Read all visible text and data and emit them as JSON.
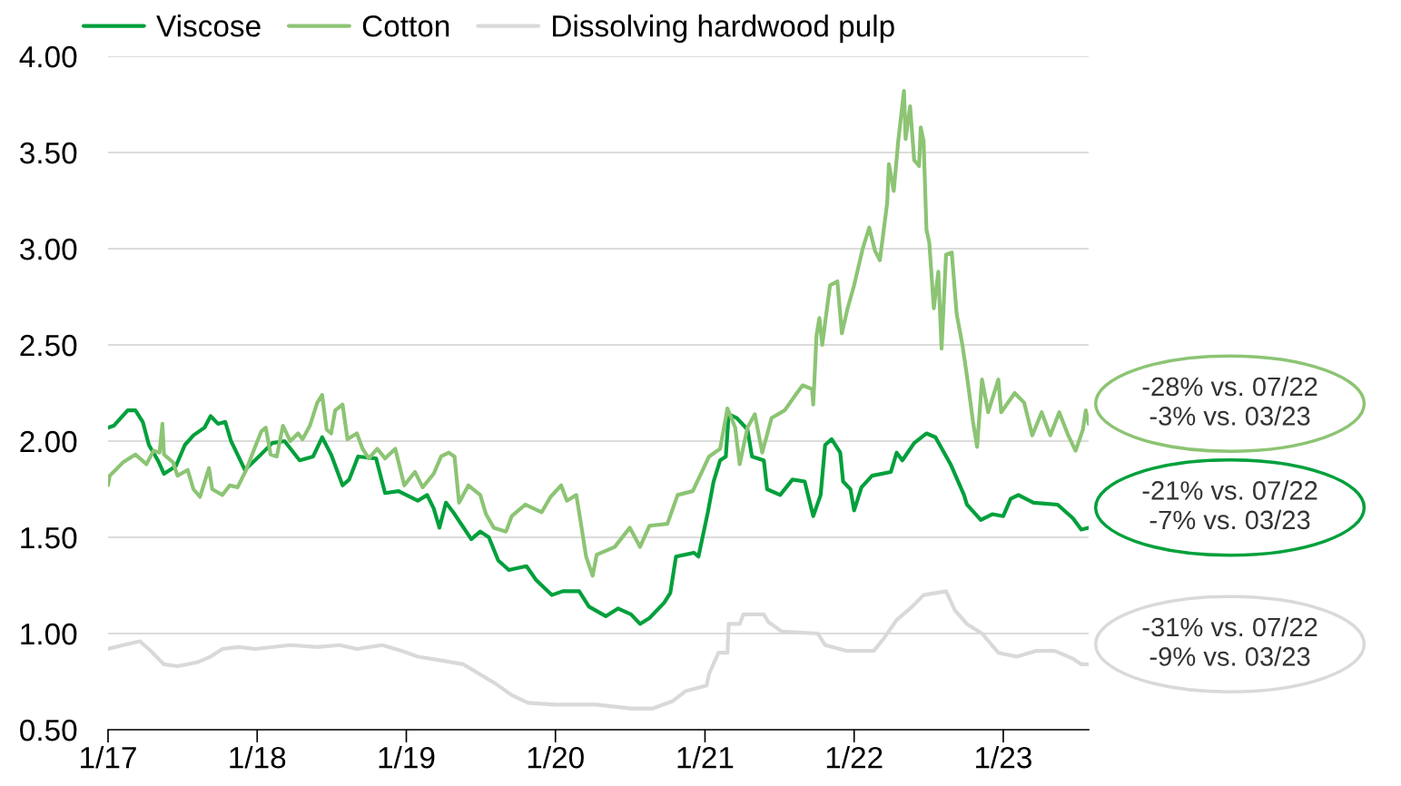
{
  "chart_data": {
    "type": "line",
    "xlim": [
      "2017-01-01",
      "2023-07-29"
    ],
    "xticks": [
      {
        "value": "2017-01-01",
        "label": "1/17"
      },
      {
        "value": "2018-01-01",
        "label": "1/18"
      },
      {
        "value": "2019-01-01",
        "label": "1/19"
      },
      {
        "value": "2020-01-01",
        "label": "1/20"
      },
      {
        "value": "2021-01-01",
        "label": "1/21"
      },
      {
        "value": "2022-01-01",
        "label": "1/22"
      },
      {
        "value": "2023-01-01",
        "label": "1/23"
      }
    ],
    "ylim": [
      0.5,
      4.0
    ],
    "yticks": [
      {
        "value": 0.5,
        "label": "0.50"
      },
      {
        "value": 1.0,
        "label": "1.00"
      },
      {
        "value": 1.5,
        "label": "1.50"
      },
      {
        "value": 2.0,
        "label": "2.00"
      },
      {
        "value": 2.5,
        "label": "2.50"
      },
      {
        "value": 3.0,
        "label": "3.00"
      },
      {
        "value": 3.5,
        "label": "3.50"
      },
      {
        "value": 4.0,
        "label": "4.00"
      }
    ],
    "grid": "y",
    "legend": "top left",
    "marker": "none",
    "line_style": "solid",
    "series": [
      {
        "name": "Viscose",
        "color": "#00a03c",
        "x": [
          "2017-01-01",
          "2017-01-15",
          "2017-02-18",
          "2017-03-09",
          "2017-03-27",
          "2017-04-11",
          "2017-05-03",
          "2017-05-18",
          "2017-06-16",
          "2017-07-08",
          "2017-07-29",
          "2017-08-25",
          "2017-09-09",
          "2017-09-27",
          "2017-10-15",
          "2017-10-29",
          "2017-11-14",
          "2017-12-02",
          "2018-01-05",
          "2018-02-07",
          "2018-03-09",
          "2018-04-15",
          "2018-05-18",
          "2018-06-09",
          "2018-07-01",
          "2018-07-29",
          "2018-08-14",
          "2018-09-05",
          "2018-10-19",
          "2018-11-10",
          "2018-12-13",
          "2019-01-29",
          "2019-02-21",
          "2019-03-09",
          "2019-03-23",
          "2019-04-08",
          "2019-04-26",
          "2019-05-18",
          "2019-06-09",
          "2019-07-01",
          "2019-07-22",
          "2019-08-14",
          "2019-09-09",
          "2019-10-22",
          "2019-11-14",
          "2019-12-23",
          "2020-01-19",
          "2020-02-28",
          "2020-03-23",
          "2020-05-03",
          "2020-06-02",
          "2020-07-04",
          "2020-07-26",
          "2020-08-18",
          "2020-09-23",
          "2020-10-08",
          "2020-10-22",
          "2020-12-05",
          "2020-12-16",
          "2021-01-08",
          "2021-01-22",
          "2021-02-07",
          "2021-02-21",
          "2021-02-28",
          "2021-03-20",
          "2021-04-15",
          "2021-04-26",
          "2021-05-25",
          "2021-06-02",
          "2021-07-04",
          "2021-08-03",
          "2021-09-02",
          "2021-09-23",
          "2021-10-11",
          "2021-10-22",
          "2021-11-07",
          "2021-11-28",
          "2021-12-05",
          "2021-12-23",
          "2022-01-01",
          "2022-01-19",
          "2022-02-14",
          "2022-04-01",
          "2022-04-15",
          "2022-04-29",
          "2022-05-28",
          "2022-06-27",
          "2022-07-19",
          "2022-08-25",
          "2022-09-27",
          "2022-10-04",
          "2022-11-07",
          "2022-12-05",
          "2023-01-01",
          "2023-01-19",
          "2023-02-07",
          "2023-03-16",
          "2023-05-14",
          "2023-06-20",
          "2023-07-11",
          "2023-07-29"
        ],
        "values": [
          2.07,
          2.08,
          2.16,
          2.16,
          2.1,
          1.98,
          1.9,
          1.83,
          1.87,
          1.98,
          2.03,
          2.07,
          2.13,
          2.09,
          2.1,
          2.0,
          1.93,
          1.85,
          1.92,
          1.99,
          2.0,
          1.9,
          1.92,
          2.02,
          1.93,
          1.77,
          1.8,
          1.92,
          1.91,
          1.73,
          1.74,
          1.69,
          1.72,
          1.65,
          1.55,
          1.68,
          1.63,
          1.56,
          1.49,
          1.53,
          1.5,
          1.38,
          1.33,
          1.35,
          1.28,
          1.2,
          1.22,
          1.22,
          1.14,
          1.09,
          1.13,
          1.1,
          1.05,
          1.08,
          1.16,
          1.21,
          1.4,
          1.42,
          1.4,
          1.63,
          1.79,
          1.9,
          1.92,
          2.14,
          2.12,
          2.06,
          1.92,
          1.9,
          1.75,
          1.72,
          1.8,
          1.79,
          1.61,
          1.72,
          1.98,
          2.01,
          1.94,
          1.79,
          1.75,
          1.64,
          1.76,
          1.82,
          1.84,
          1.94,
          1.9,
          1.99,
          2.04,
          2.02,
          1.88,
          1.72,
          1.67,
          1.59,
          1.62,
          1.61,
          1.7,
          1.72,
          1.68,
          1.67,
          1.6,
          1.54,
          1.55
        ]
      },
      {
        "name": "Cotton",
        "color": "#8cc474",
        "x": [
          "2017-01-01",
          "2017-01-05",
          "2017-02-07",
          "2017-03-09",
          "2017-04-05",
          "2017-04-22",
          "2017-05-07",
          "2017-05-14",
          "2017-05-18",
          "2017-06-09",
          "2017-06-20",
          "2017-07-15",
          "2017-07-29",
          "2017-08-14",
          "2017-09-05",
          "2017-09-13",
          "2017-10-08",
          "2017-10-26",
          "2017-11-14",
          "2017-12-05",
          "2017-12-27",
          "2018-01-11",
          "2018-01-22",
          "2018-02-03",
          "2018-02-18",
          "2018-03-05",
          "2018-03-23",
          "2018-04-11",
          "2018-04-22",
          "2018-05-10",
          "2018-05-28",
          "2018-06-09",
          "2018-06-20",
          "2018-07-01",
          "2018-07-11",
          "2018-07-29",
          "2018-08-10",
          "2018-09-02",
          "2018-09-16",
          "2018-10-01",
          "2018-10-22",
          "2018-11-10",
          "2018-12-05",
          "2018-12-27",
          "2019-01-22",
          "2019-02-10",
          "2019-03-09",
          "2019-03-27",
          "2019-04-15",
          "2019-04-29",
          "2019-05-10",
          "2019-06-02",
          "2019-07-01",
          "2019-07-15",
          "2019-08-03",
          "2019-09-02",
          "2019-09-16",
          "2019-10-19",
          "2019-11-28",
          "2019-12-20",
          "2020-01-15",
          "2020-01-29",
          "2020-02-21",
          "2020-03-02",
          "2020-03-16",
          "2020-04-01",
          "2020-04-11",
          "2020-05-25",
          "2020-07-01",
          "2020-07-26",
          "2020-08-18",
          "2020-10-01",
          "2020-10-26",
          "2020-12-02",
          "2021-01-11",
          "2021-02-07",
          "2021-02-25",
          "2021-03-16",
          "2021-03-27",
          "2021-04-15",
          "2021-05-03",
          "2021-05-21",
          "2021-06-13",
          "2021-07-15",
          "2021-08-14",
          "2021-08-28",
          "2021-09-20",
          "2021-09-23",
          "2021-10-01",
          "2021-10-08",
          "2021-10-15",
          "2021-11-03",
          "2021-11-21",
          "2021-12-02",
          "2021-12-16",
          "2022-01-01",
          "2022-01-22",
          "2022-02-07",
          "2022-02-21",
          "2022-03-05",
          "2022-03-23",
          "2022-03-27",
          "2022-04-08",
          "2022-04-19",
          "2022-05-03",
          "2022-05-07",
          "2022-05-18",
          "2022-05-28",
          "2022-06-09",
          "2022-06-13",
          "2022-06-20",
          "2022-06-27",
          "2022-07-04",
          "2022-07-15",
          "2022-07-26",
          "2022-08-03",
          "2022-08-14",
          "2022-08-28",
          "2022-09-09",
          "2022-09-23",
          "2022-10-04",
          "2022-10-19",
          "2022-10-29",
          "2022-11-10",
          "2022-11-25",
          "2022-12-20",
          "2022-12-27",
          "2023-01-29",
          "2023-02-21",
          "2023-03-13",
          "2023-04-05",
          "2023-04-26",
          "2023-05-18",
          "2023-06-09",
          "2023-06-27",
          "2023-07-15",
          "2023-07-22",
          "2023-07-29"
        ],
        "values": [
          1.77,
          1.82,
          1.89,
          1.93,
          1.88,
          1.95,
          1.94,
          2.09,
          1.93,
          1.89,
          1.82,
          1.85,
          1.75,
          1.71,
          1.86,
          1.75,
          1.72,
          1.77,
          1.76,
          1.85,
          1.97,
          2.05,
          2.07,
          1.93,
          1.92,
          2.08,
          2.0,
          2.04,
          2.01,
          2.08,
          2.2,
          2.24,
          2.06,
          2.04,
          2.16,
          2.19,
          2.01,
          2.04,
          1.96,
          1.91,
          1.96,
          1.91,
          1.96,
          1.77,
          1.84,
          1.76,
          1.83,
          1.92,
          1.94,
          1.92,
          1.68,
          1.77,
          1.72,
          1.62,
          1.55,
          1.53,
          1.61,
          1.67,
          1.63,
          1.71,
          1.77,
          1.69,
          1.72,
          1.59,
          1.4,
          1.3,
          1.41,
          1.45,
          1.55,
          1.45,
          1.56,
          1.57,
          1.72,
          1.74,
          1.92,
          1.96,
          2.17,
          2.07,
          1.88,
          2.07,
          2.14,
          1.94,
          2.12,
          2.16,
          2.25,
          2.29,
          2.27,
          2.19,
          2.55,
          2.64,
          2.5,
          2.81,
          2.83,
          2.56,
          2.69,
          2.81,
          3.0,
          3.11,
          2.99,
          2.94,
          3.24,
          3.44,
          3.3,
          3.56,
          3.82,
          3.57,
          3.74,
          3.46,
          3.43,
          3.63,
          3.56,
          3.1,
          3.03,
          2.69,
          2.88,
          2.48,
          2.97,
          2.98,
          2.66,
          2.5,
          2.34,
          2.1,
          1.97,
          2.32,
          2.15,
          2.32,
          2.15,
          2.25,
          2.2,
          2.03,
          2.15,
          2.03,
          2.15,
          2.03,
          1.95,
          2.06,
          2.16,
          2.09
        ]
      },
      {
        "name": "Dissolving hardwood pulp",
        "color": "#d9d9d9",
        "x": [
          "2017-01-01",
          "2017-02-07",
          "2017-03-20",
          "2017-04-15",
          "2017-05-18",
          "2017-06-20",
          "2017-08-07",
          "2017-09-09",
          "2017-10-08",
          "2017-11-17",
          "2017-12-27",
          "2018-03-23",
          "2018-05-28",
          "2018-07-22",
          "2018-09-02",
          "2018-11-03",
          "2018-12-20",
          "2019-01-29",
          "2019-03-27",
          "2019-05-21",
          "2019-08-07",
          "2019-09-16",
          "2019-10-26",
          "2020-01-01",
          "2020-04-11",
          "2020-07-04",
          "2020-08-25",
          "2020-10-15",
          "2020-11-14",
          "2021-01-05",
          "2021-01-11",
          "2021-02-03",
          "2021-02-25",
          "2021-02-28",
          "2021-03-27",
          "2021-04-05",
          "2021-05-25",
          "2021-06-05",
          "2021-07-08",
          "2021-10-04",
          "2021-10-22",
          "2021-12-13",
          "2022-02-18",
          "2022-03-13",
          "2022-04-15",
          "2022-05-18",
          "2022-06-20",
          "2022-08-14",
          "2022-09-05",
          "2022-10-04",
          "2022-11-10",
          "2022-12-20",
          "2023-02-03",
          "2023-03-23",
          "2023-05-07",
          "2023-06-20",
          "2023-07-11",
          "2023-07-29"
        ],
        "values": [
          0.92,
          0.94,
          0.96,
          0.91,
          0.84,
          0.83,
          0.85,
          0.88,
          0.92,
          0.93,
          0.92,
          0.94,
          0.93,
          0.94,
          0.92,
          0.94,
          0.91,
          0.88,
          0.86,
          0.84,
          0.74,
          0.68,
          0.64,
          0.63,
          0.63,
          0.61,
          0.61,
          0.65,
          0.7,
          0.73,
          0.79,
          0.9,
          0.9,
          1.05,
          1.05,
          1.1,
          1.1,
          1.06,
          1.01,
          1.0,
          0.94,
          0.91,
          0.91,
          0.97,
          1.07,
          1.13,
          1.2,
          1.22,
          1.12,
          1.05,
          1.0,
          0.9,
          0.88,
          0.91,
          0.91,
          0.87,
          0.84,
          0.84
        ]
      }
    ],
    "annotations": [
      "-21% vs. 07/22\n-7% vs. 03/23",
      "-28% vs. 07/22\n-3% vs. 03/23",
      "-31% vs. 07/22\n-9% vs. 03/23"
    ]
  }
}
